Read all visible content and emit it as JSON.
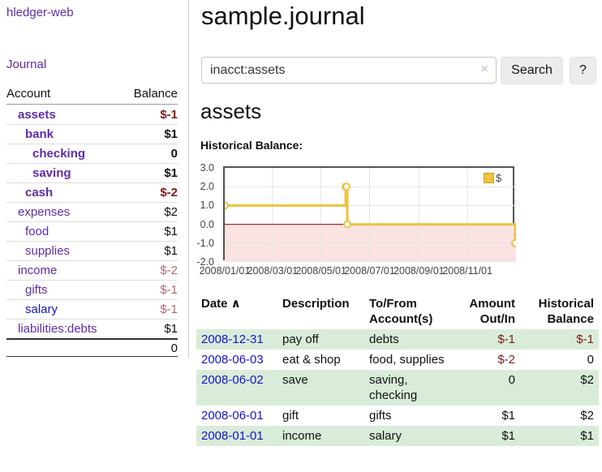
{
  "app": {
    "brand": "hledger-web",
    "nav_journal": "Journal"
  },
  "header": {
    "title": "sample.journal"
  },
  "search": {
    "query": "inacct:assets",
    "clear_icon": "×",
    "button": "Search",
    "help_button": "?"
  },
  "account_page": {
    "heading": "assets",
    "chart_label": "Historical Balance:"
  },
  "sidebar": {
    "accounts_header": {
      "account": "Account",
      "balance": "Balance"
    },
    "accounts": [
      {
        "name": "assets",
        "balance": "$-1",
        "depth": 1,
        "bold": true
      },
      {
        "name": "bank",
        "balance": "$1",
        "depth": 2,
        "bold": true
      },
      {
        "name": "checking",
        "balance": "0",
        "depth": 3,
        "bold": true
      },
      {
        "name": "saving",
        "balance": "$1",
        "depth": 3,
        "bold": true
      },
      {
        "name": "cash",
        "balance": "$-2",
        "depth": 2,
        "bold": true
      },
      {
        "name": "expenses",
        "balance": "$2",
        "depth": 1,
        "bold": false
      },
      {
        "name": "food",
        "balance": "$1",
        "depth": 2,
        "bold": false
      },
      {
        "name": "supplies",
        "balance": "$1",
        "depth": 2,
        "bold": false
      },
      {
        "name": "income",
        "balance": "$-2",
        "depth": 1,
        "bold": false
      },
      {
        "name": "gifts",
        "balance": "$-1",
        "depth": 2,
        "bold": false
      },
      {
        "name": "salary",
        "balance": "$-1",
        "depth": 2,
        "bold": false,
        "unvisited": true
      },
      {
        "name": "liabilities:debts",
        "balance": "$1",
        "depth": 1,
        "bold": false
      }
    ],
    "total": "0"
  },
  "chart_data": {
    "type": "line",
    "step": true,
    "title": "Historical Balance:",
    "legend": {
      "label": "$",
      "position": "top-right"
    },
    "xlim": [
      "2008-01-01",
      "2009-01-01"
    ],
    "ylim": [
      -2,
      3
    ],
    "series": [
      {
        "name": "$",
        "color": "#edc240",
        "points": [
          [
            "2008-01-01",
            1
          ],
          [
            "2008-06-01",
            2
          ],
          [
            "2008-06-02",
            2
          ],
          [
            "2008-06-03",
            0
          ],
          [
            "2008-12-31",
            -1
          ]
        ]
      }
    ],
    "y_ticks": [
      3.0,
      2.0,
      1.0,
      0.0,
      -1.0,
      -2.0
    ],
    "x_ticks": [
      {
        "pos": "2008-01-01",
        "label": "2008/01/01"
      },
      {
        "pos": "2008-03-01",
        "label": "2008/03/01"
      },
      {
        "pos": "2008-05-01",
        "label": "2008/05/01"
      },
      {
        "pos": "2008-07-01",
        "label": "2008/07/01"
      },
      {
        "pos": "2008-09-01",
        "label": "2008/09/01"
      },
      {
        "pos": "2008-11-01",
        "label": "2008/11/01"
      }
    ],
    "grid": true,
    "colors": {
      "grid": "#e3e3e3",
      "zero_line": "#a40000",
      "negative_region": "#fbe3e3",
      "plot_border": "#545454"
    }
  },
  "register": {
    "sort_icon": "∧",
    "columns": [
      {
        "label": "Date",
        "align": "left",
        "sortable": true
      },
      {
        "label": "Description",
        "align": "left"
      },
      {
        "label": "To/From Account(s)",
        "align": "left"
      },
      {
        "label": "Amount Out/In",
        "align": "right"
      },
      {
        "label": "Historical Balance",
        "align": "right"
      }
    ],
    "rows": [
      {
        "date": "2008-12-31",
        "description": "pay off",
        "accounts": "debts",
        "amount": "$-1",
        "balance": "$-1"
      },
      {
        "date": "2008-06-03",
        "description": "eat & shop",
        "accounts": "food, supplies",
        "amount": "$-2",
        "balance": "0"
      },
      {
        "date": "2008-06-02",
        "description": "save",
        "accounts": "saving, checking",
        "amount": "0",
        "balance": "$2"
      },
      {
        "date": "2008-06-01",
        "description": "gift",
        "accounts": "gifts",
        "amount": "$1",
        "balance": "$2"
      },
      {
        "date": "2008-01-01",
        "description": "income",
        "accounts": "salary",
        "amount": "$1",
        "balance": "$1"
      }
    ]
  },
  "colors": {
    "link_purple": "#5d2ca8",
    "link_blue": "#1414cc",
    "negative": "#7f1c1c",
    "negative_muted": "#b4666b",
    "row_stripe_green": "#d9ecd9",
    "series_gold": "#edc240"
  }
}
